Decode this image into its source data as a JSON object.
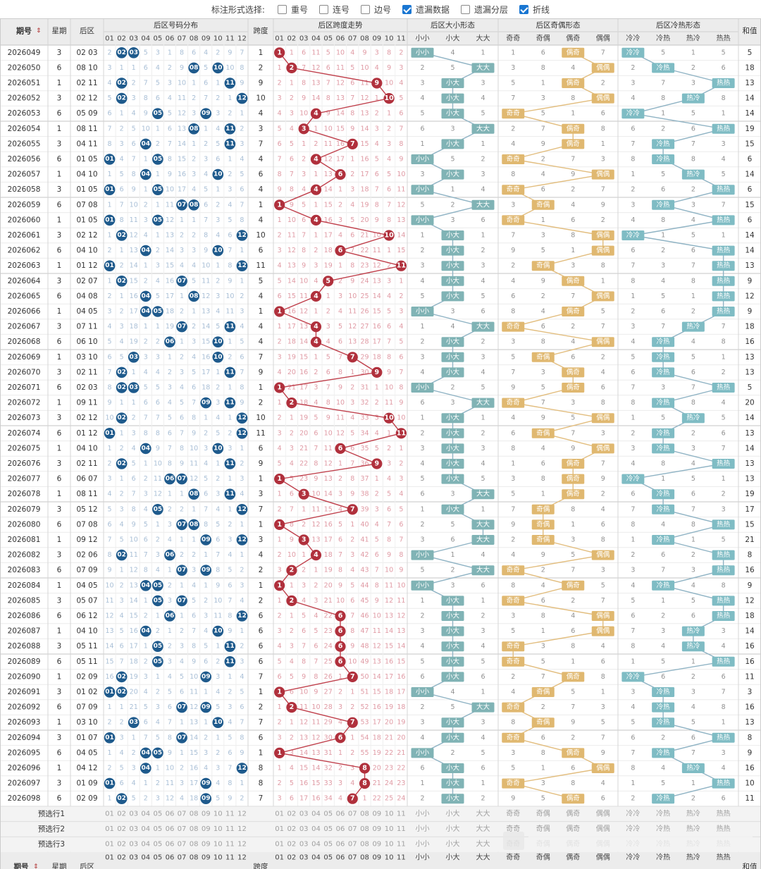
{
  "toolbar": {
    "label": "标注形式选择:",
    "options": [
      {
        "label": "重号",
        "checked": false
      },
      {
        "label": "连号",
        "checked": false
      },
      {
        "label": "边号",
        "checked": false
      },
      {
        "label": "遗漏数据",
        "checked": true
      },
      {
        "label": "遗漏分层",
        "checked": false
      },
      {
        "label": "折线",
        "checked": true
      }
    ]
  },
  "headers": {
    "period": "期号",
    "sort_icon": "sort-arrows-icon",
    "weekday": "星期",
    "back": "后区",
    "dist": "后区号码分布",
    "span": "跨度",
    "span_trend": "后区跨度走势",
    "size": "后区大小形态",
    "parity": "后区奇偶形态",
    "temp": "后区冷热形态",
    "sum": "和值"
  },
  "num_labels": [
    "01",
    "02",
    "03",
    "04",
    "05",
    "06",
    "07",
    "08",
    "09",
    "10",
    "11",
    "12"
  ],
  "span_labels": [
    "01",
    "02",
    "03",
    "04",
    "05",
    "06",
    "07",
    "08",
    "09",
    "10",
    "11"
  ],
  "size_labels": [
    "小小",
    "小大",
    "大大"
  ],
  "parity_labels": [
    "奇奇",
    "奇偶",
    "偶奇",
    "偶偶"
  ],
  "temp_labels": [
    "冷冷",
    "冷热",
    "热冷",
    "热热"
  ],
  "rows": [
    {
      "p": "2026049",
      "w": "3",
      "b": "02 03",
      "s": "1",
      "ps": "小小",
      "pp": "偶奇",
      "pt": "冷冷",
      "sum": "5"
    },
    {
      "p": "2026050",
      "w": "6",
      "b": "08 10",
      "s": "2",
      "ps": "大大",
      "pp": "偶偶",
      "pt": "冷热",
      "sum": "18"
    },
    {
      "p": "2026051",
      "w": "1",
      "b": "02 11",
      "s": "9",
      "ps": "小大",
      "pp": "偶奇",
      "pt": "热热",
      "sum": "13"
    },
    {
      "p": "2026052",
      "w": "3",
      "b": "02 12",
      "s": "10",
      "ps": "小大",
      "pp": "偶偶",
      "pt": "热冷",
      "sum": "14"
    },
    {
      "p": "2026053",
      "w": "6",
      "b": "05 09",
      "s": "4",
      "ps": "小大",
      "pp": "奇奇",
      "pt": "冷冷",
      "sum": "14"
    },
    {
      "p": "2026054",
      "w": "1",
      "b": "08 11",
      "s": "3",
      "ps": "大大",
      "pp": "偶奇",
      "pt": "热热",
      "sum": "19"
    },
    {
      "p": "2026055",
      "w": "3",
      "b": "04 11",
      "s": "7",
      "ps": "小大",
      "pp": "偶奇",
      "pt": "冷热",
      "sum": "15"
    },
    {
      "p": "2026056",
      "w": "6",
      "b": "01 05",
      "s": "4",
      "ps": "小小",
      "pp": "奇奇",
      "pt": "冷热",
      "sum": "6"
    },
    {
      "p": "2026057",
      "w": "1",
      "b": "04 10",
      "s": "6",
      "ps": "小大",
      "pp": "偶偶",
      "pt": "热冷",
      "sum": "14"
    },
    {
      "p": "2026058",
      "w": "3",
      "b": "01 05",
      "s": "4",
      "ps": "小小",
      "pp": "奇奇",
      "pt": "热热",
      "sum": "6"
    },
    {
      "p": "2026059",
      "w": "6",
      "b": "07 08",
      "s": "1",
      "ps": "大大",
      "pp": "奇偶",
      "pt": "冷热",
      "sum": "15"
    },
    {
      "p": "2026060",
      "w": "1",
      "b": "01 05",
      "s": "4",
      "ps": "小小",
      "pp": "奇奇",
      "pt": "热热",
      "sum": "6"
    },
    {
      "p": "2026061",
      "w": "3",
      "b": "02 12",
      "s": "10",
      "ps": "小大",
      "pp": "偶偶",
      "pt": "冷冷",
      "sum": "14"
    },
    {
      "p": "2026062",
      "w": "6",
      "b": "04 10",
      "s": "6",
      "ps": "小大",
      "pp": "偶偶",
      "pt": "热热",
      "sum": "14"
    },
    {
      "p": "2026063",
      "w": "1",
      "b": "01 12",
      "s": "11",
      "ps": "小大",
      "pp": "奇偶",
      "pt": "热热",
      "sum": "13"
    },
    {
      "p": "2026064",
      "w": "3",
      "b": "02 07",
      "s": "5",
      "ps": "小大",
      "pp": "偶奇",
      "pt": "热热",
      "sum": "9"
    },
    {
      "p": "2026065",
      "w": "6",
      "b": "04 08",
      "s": "4",
      "ps": "小大",
      "pp": "偶偶",
      "pt": "热热",
      "sum": "12"
    },
    {
      "p": "2026066",
      "w": "1",
      "b": "04 05",
      "s": "1",
      "ps": "小小",
      "pp": "偶奇",
      "pt": "热热",
      "sum": "9"
    },
    {
      "p": "2026067",
      "w": "3",
      "b": "07 11",
      "s": "4",
      "ps": "大大",
      "pp": "奇奇",
      "pt": "热冷",
      "sum": "18"
    },
    {
      "p": "2026068",
      "w": "6",
      "b": "06 10",
      "s": "4",
      "ps": "小大",
      "pp": "偶偶",
      "pt": "冷热",
      "sum": "16"
    },
    {
      "p": "2026069",
      "w": "1",
      "b": "03 10",
      "s": "7",
      "ps": "小大",
      "pp": "奇偶",
      "pt": "冷热",
      "sum": "13"
    },
    {
      "p": "2026070",
      "w": "3",
      "b": "02 11",
      "s": "9",
      "ps": "小大",
      "pp": "偶奇",
      "pt": "冷热",
      "sum": "13"
    },
    {
      "p": "2026071",
      "w": "6",
      "b": "02 03",
      "s": "1",
      "ps": "小小",
      "pp": "偶奇",
      "pt": "热热",
      "sum": "5"
    },
    {
      "p": "2026072",
      "w": "1",
      "b": "09 11",
      "s": "2",
      "ps": "大大",
      "pp": "奇奇",
      "pt": "冷热",
      "sum": "20"
    },
    {
      "p": "2026073",
      "w": "3",
      "b": "02 12",
      "s": "10",
      "ps": "小大",
      "pp": "偶偶",
      "pt": "热冷",
      "sum": "14"
    },
    {
      "p": "2026074",
      "w": "6",
      "b": "01 12",
      "s": "11",
      "ps": "小大",
      "pp": "奇偶",
      "pt": "冷热",
      "sum": "13"
    },
    {
      "p": "2026075",
      "w": "1",
      "b": "04 10",
      "s": "6",
      "ps": "小大",
      "pp": "偶偶",
      "pt": "冷热",
      "sum": "14"
    },
    {
      "p": "2026076",
      "w": "3",
      "b": "02 11",
      "s": "9",
      "ps": "小大",
      "pp": "偶奇",
      "pt": "热热",
      "sum": "13"
    },
    {
      "p": "2026077",
      "w": "6",
      "b": "06 07",
      "s": "1",
      "ps": "小大",
      "pp": "偶奇",
      "pt": "冷冷",
      "sum": "13"
    },
    {
      "p": "2026078",
      "w": "1",
      "b": "08 11",
      "s": "3",
      "ps": "大大",
      "pp": "偶奇",
      "pt": "冷热",
      "sum": "19"
    },
    {
      "p": "2026079",
      "w": "3",
      "b": "05 12",
      "s": "7",
      "ps": "小大",
      "pp": "奇偶",
      "pt": "冷热",
      "sum": "17"
    },
    {
      "p": "2026080",
      "w": "6",
      "b": "07 08",
      "s": "1",
      "ps": "大大",
      "pp": "奇偶",
      "pt": "热热",
      "sum": "15"
    },
    {
      "p": "2026081",
      "w": "1",
      "b": "09 12",
      "s": "3",
      "ps": "大大",
      "pp": "奇偶",
      "pt": "冷热",
      "sum": "21"
    },
    {
      "p": "2026082",
      "w": "3",
      "b": "02 06",
      "s": "4",
      "ps": "小小",
      "pp": "偶偶",
      "pt": "热热",
      "sum": "8"
    },
    {
      "p": "2026083",
      "w": "6",
      "b": "07 09",
      "s": "2",
      "ps": "大大",
      "pp": "奇奇",
      "pt": "热热",
      "sum": "16"
    },
    {
      "p": "2026084",
      "w": "1",
      "b": "04 05",
      "s": "1",
      "ps": "小小",
      "pp": "偶奇",
      "pt": "冷热",
      "sum": "9"
    },
    {
      "p": "2026085",
      "w": "3",
      "b": "05 07",
      "s": "2",
      "ps": "小大",
      "pp": "奇奇",
      "pt": "热热",
      "sum": "12"
    },
    {
      "p": "2026086",
      "w": "6",
      "b": "06 12",
      "s": "6",
      "ps": "小大",
      "pp": "偶偶",
      "pt": "热热",
      "sum": "18"
    },
    {
      "p": "2026087",
      "w": "1",
      "b": "04 10",
      "s": "6",
      "ps": "小大",
      "pp": "偶偶",
      "pt": "热冷",
      "sum": "14"
    },
    {
      "p": "2026088",
      "w": "3",
      "b": "05 11",
      "s": "6",
      "ps": "小大",
      "pp": "奇奇",
      "pt": "热冷",
      "sum": "16"
    },
    {
      "p": "2026089",
      "w": "6",
      "b": "05 11",
      "s": "6",
      "ps": "小大",
      "pp": "奇奇",
      "pt": "热热",
      "sum": "16"
    },
    {
      "p": "2026090",
      "w": "1",
      "b": "02 09",
      "s": "7",
      "ps": "小大",
      "pp": "偶奇",
      "pt": "冷冷",
      "sum": "11"
    },
    {
      "p": "2026091",
      "w": "3",
      "b": "01 02",
      "s": "1",
      "ps": "小小",
      "pp": "奇偶",
      "pt": "冷热",
      "sum": "3"
    },
    {
      "p": "2026092",
      "w": "6",
      "b": "07 09",
      "s": "2",
      "ps": "大大",
      "pp": "奇奇",
      "pt": "冷热",
      "sum": "16"
    },
    {
      "p": "2026093",
      "w": "1",
      "b": "03 10",
      "s": "7",
      "ps": "小大",
      "pp": "奇偶",
      "pt": "冷热",
      "sum": "13"
    },
    {
      "p": "2026094",
      "w": "3",
      "b": "01 07",
      "s": "6",
      "ps": "小大",
      "pp": "奇奇",
      "pt": "热热",
      "sum": "8"
    },
    {
      "p": "2026095",
      "w": "6",
      "b": "04 05",
      "s": "1",
      "ps": "小小",
      "pp": "偶奇",
      "pt": "冷热",
      "sum": "9"
    },
    {
      "p": "2026096",
      "w": "1",
      "b": "04 12",
      "s": "8",
      "ps": "小大",
      "pp": "偶偶",
      "pt": "热冷",
      "sum": "16"
    },
    {
      "p": "2026097",
      "w": "3",
      "b": "01 09",
      "s": "8",
      "ps": "小大",
      "pp": "奇奇",
      "pt": "热热",
      "sum": "10"
    },
    {
      "p": "2026098",
      "w": "6",
      "b": "02 09",
      "s": "7",
      "ps": "小大",
      "pp": "偶奇",
      "pt": "冷热",
      "sum": "11"
    }
  ],
  "sel_rows": [
    "预选行1",
    "预选行2",
    "预选行3"
  ],
  "colors": {
    "ball_blue": "#1e5a8c",
    "ball_red": "#b0303c",
    "line_red": "#c0404c",
    "size_fill": "#80b3b5",
    "parity_fill": "#e0b870",
    "temp_fill": "#7fbcc4",
    "omit_blue": "#a9bfd6",
    "omit_red": "#e09aa4",
    "omit_gray": "#909090",
    "header_bg": "#ececec",
    "grid_line": "#d5d5d5"
  }
}
